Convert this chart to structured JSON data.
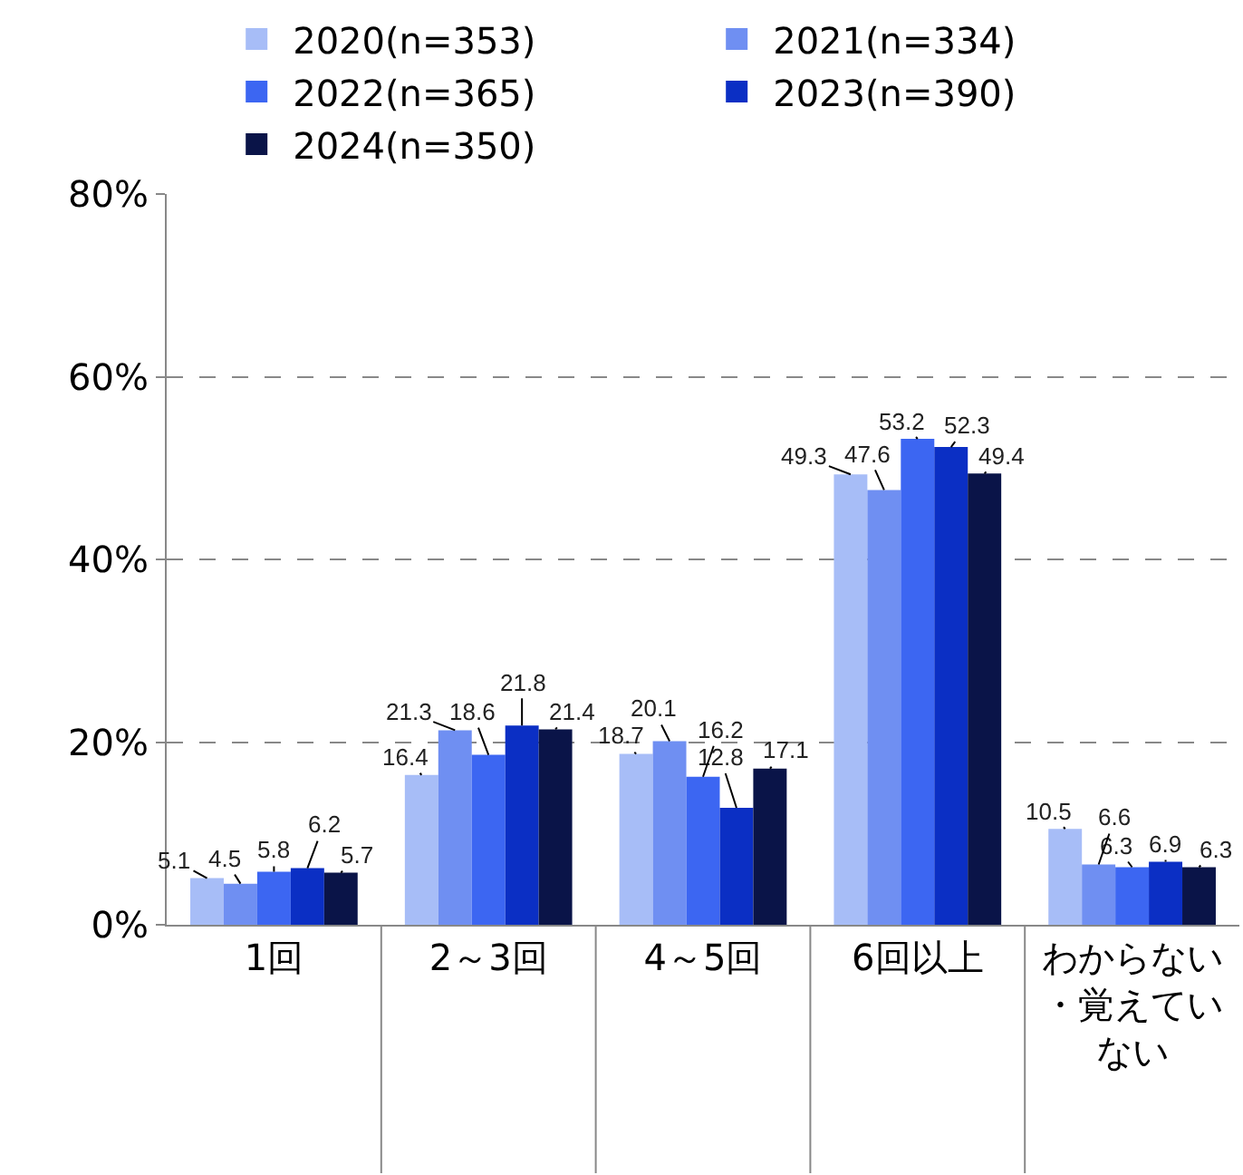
{
  "chart_data": {
    "type": "bar",
    "categories": [
      "1回",
      "2～3回",
      "4～5回",
      "6回以上",
      "わからない・覚えていない"
    ],
    "series": [
      {
        "name": "2020(n=353)",
        "color": "#a7bdf7",
        "values": [
          5.1,
          16.4,
          18.7,
          49.3,
          10.5
        ]
      },
      {
        "name": "2021(n=334)",
        "color": "#6f8ff2",
        "values": [
          4.5,
          21.3,
          20.1,
          47.6,
          6.6
        ]
      },
      {
        "name": "2022(n=365)",
        "color": "#3c66f2",
        "values": [
          5.8,
          18.6,
          16.2,
          53.2,
          6.3
        ]
      },
      {
        "name": "2023(n=390)",
        "color": "#0b2fc4",
        "values": [
          6.2,
          21.8,
          12.8,
          52.3,
          6.9
        ]
      },
      {
        "name": "2024(n=350)",
        "color": "#0a1448",
        "values": [
          5.7,
          21.4,
          17.1,
          49.4,
          6.3
        ]
      }
    ],
    "ylim": [
      0,
      80
    ],
    "yticks": [
      {
        "value": 0,
        "label": "0%"
      },
      {
        "value": 20,
        "label": "20%"
      },
      {
        "value": 40,
        "label": "40%"
      },
      {
        "value": 60,
        "label": "60%"
      },
      {
        "value": 80,
        "label": "80%"
      }
    ],
    "grid": "y",
    "legend": "top",
    "data_labels": true
  }
}
